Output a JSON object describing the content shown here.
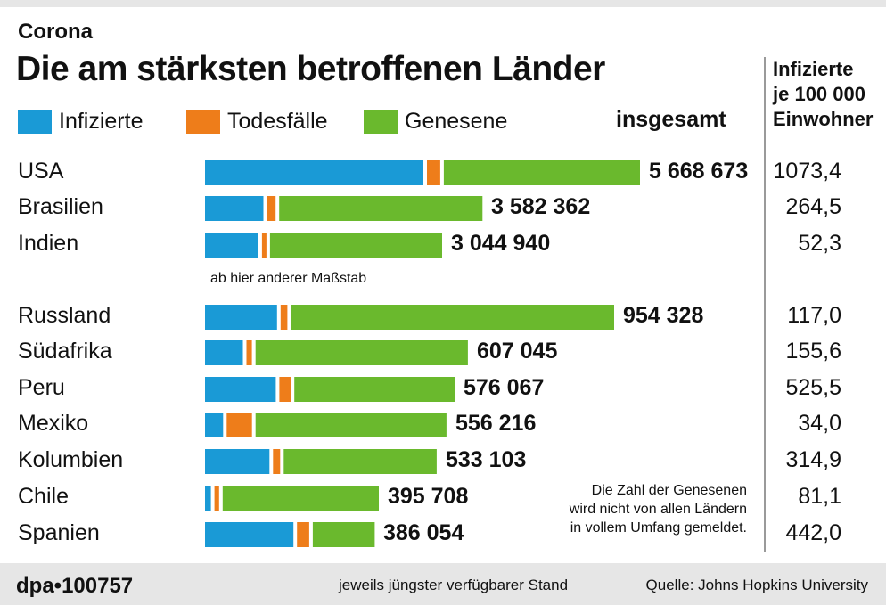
{
  "kicker": "Corona",
  "title": "Die am stärksten betroffenen Länder",
  "legend": {
    "infected": "Infizierte",
    "deaths": "Todesfälle",
    "recovered": "Genesene",
    "total_header": "insgesamt"
  },
  "per_capita_header": [
    "Infizierte",
    "je 100 000",
    "Einwohner"
  ],
  "scale_note": "ab hier anderer Maßstab",
  "footnote": [
    "Die Zahl der Genesenen",
    "wird nicht von allen Ländern",
    "in vollem Umfang gemeldet."
  ],
  "footer": {
    "logo": "dpa•100757",
    "middle": "jeweils jüngster verfügbarer Stand",
    "source": "Quelle: Johns Hopkins University"
  },
  "colors": {
    "infected": "#1a9ad6",
    "deaths": "#ee7d1a",
    "recovered": "#6ab92d"
  },
  "chart_data": {
    "type": "bar",
    "orientation": "horizontal",
    "stacked": true,
    "series_names": [
      "Infizierte",
      "Todesfälle",
      "Genesene"
    ],
    "groups": [
      {
        "scale_note": "",
        "rows": [
          {
            "country": "USA",
            "total": "5 668 673",
            "total_value": 5668673,
            "per_100k": "1073,4",
            "infected": 2893000,
            "deaths": 176000,
            "recovered": 2599673
          },
          {
            "country": "Brasilien",
            "total": "3 582 362",
            "total_value": 3582362,
            "per_100k": "264,5",
            "infected": 774000,
            "deaths": 114000,
            "recovered": 2694362
          },
          {
            "country": "Indien",
            "total": "3 044 940",
            "total_value": 3044940,
            "per_100k": "52,3",
            "infected": 707000,
            "deaths": 57000,
            "recovered": 2280940
          }
        ]
      },
      {
        "scale_note": "ab hier anderer Maßstab",
        "rows": [
          {
            "country": "Russland",
            "total": "954 328",
            "total_value": 954328,
            "per_100k": "117,0",
            "infected": 171000,
            "deaths": 16000,
            "recovered": 767328
          },
          {
            "country": "Südafrika",
            "total": "607 045",
            "total_value": 607045,
            "per_100k": "155,6",
            "infected": 90000,
            "deaths": 13000,
            "recovered": 504045
          },
          {
            "country": "Peru",
            "total": "576 067",
            "total_value": 576067,
            "per_100k": "525,5",
            "infected": 168000,
            "deaths": 27000,
            "recovered": 381067
          },
          {
            "country": "Mexiko",
            "total": "556 216",
            "total_value": 556216,
            "per_100k": "34,0",
            "infected": 43000,
            "deaths": 60000,
            "recovered": 453216
          },
          {
            "country": "Kolumbien",
            "total": "533 103",
            "total_value": 533103,
            "per_100k": "314,9",
            "infected": 153000,
            "deaths": 17000,
            "recovered": 363103
          },
          {
            "country": "Chile",
            "total": "395 708",
            "total_value": 395708,
            "per_100k": "81,1",
            "infected": 14000,
            "deaths": 11000,
            "recovered": 370708
          },
          {
            "country": "Spanien",
            "total": "386 054",
            "total_value": 386054,
            "per_100k": "442,0",
            "infected": 210000,
            "deaths": 29000,
            "recovered": 147054
          }
        ]
      }
    ]
  }
}
